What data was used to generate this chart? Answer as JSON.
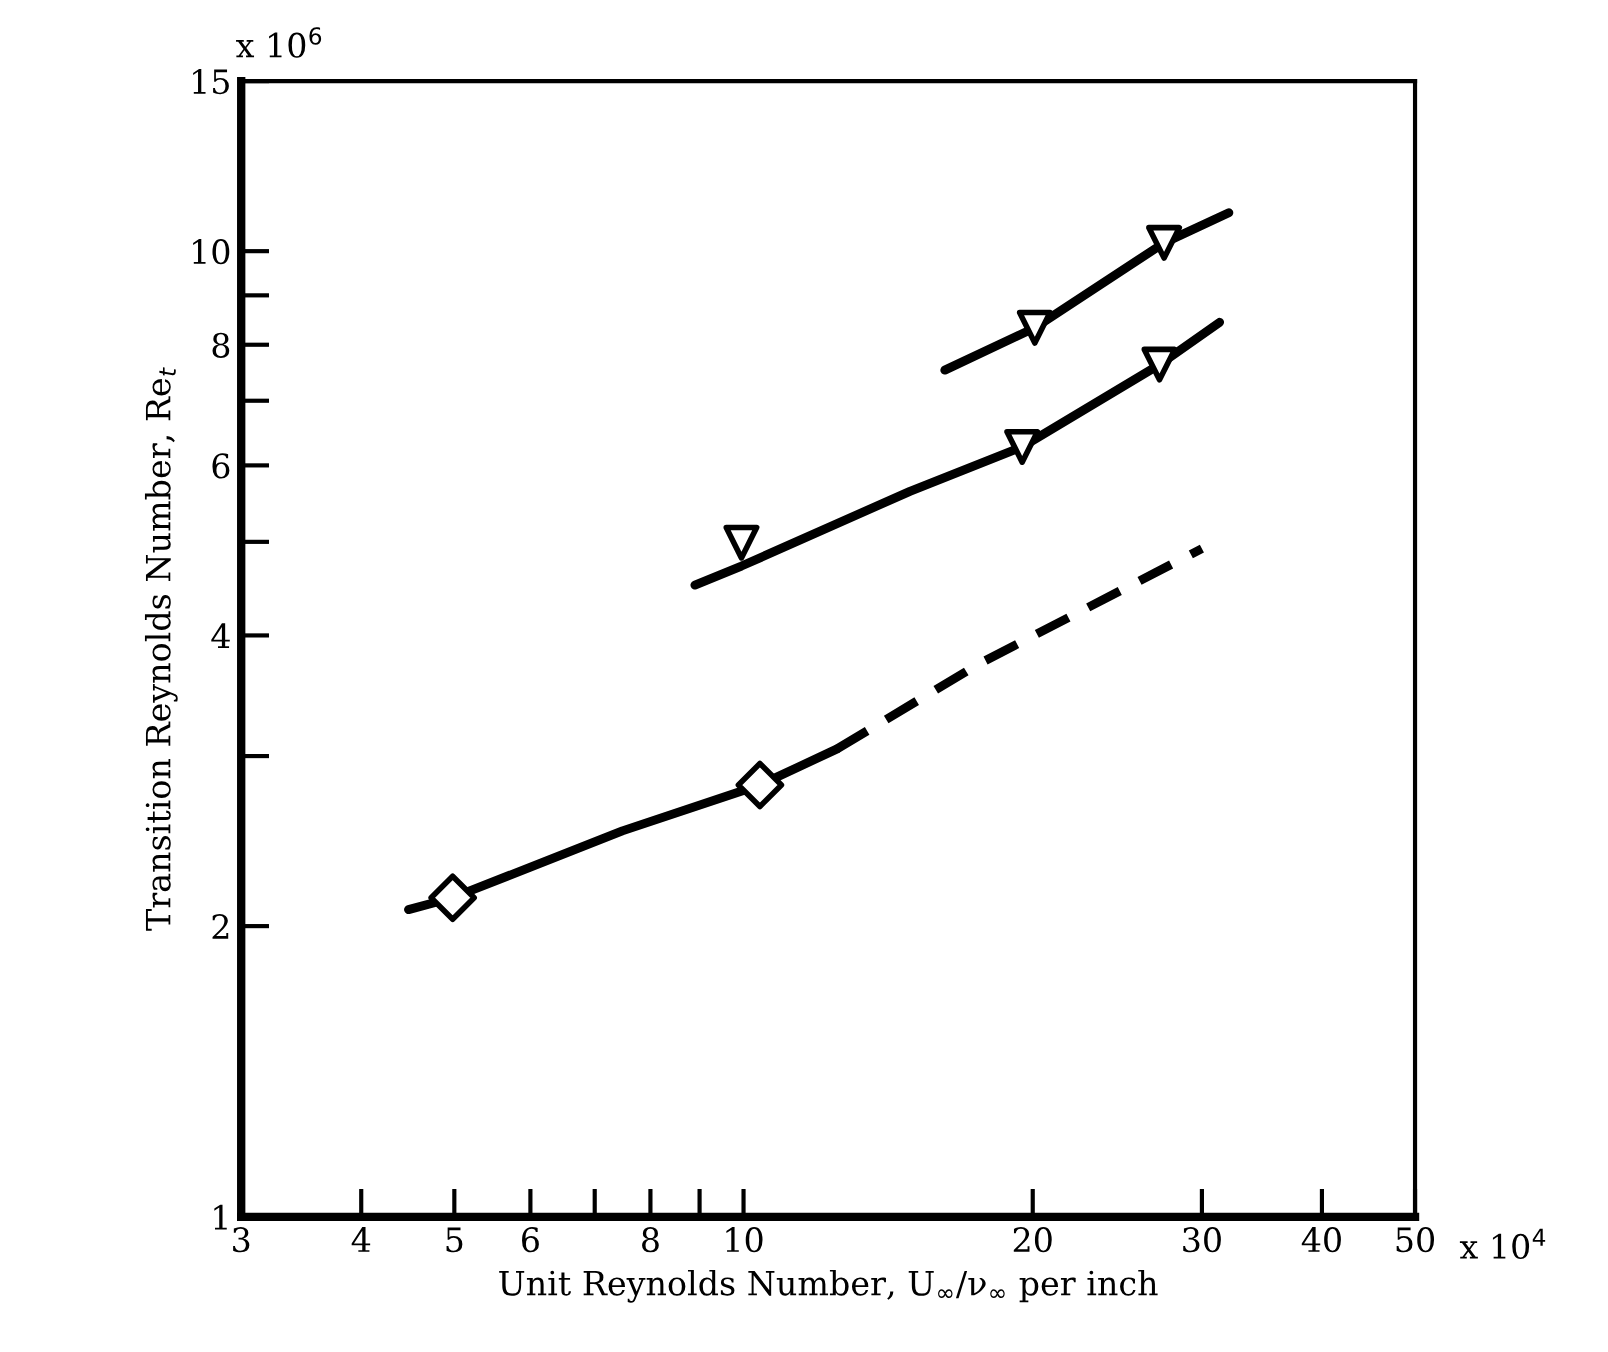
{
  "chart_data": {
    "type": "line",
    "xlabel": "Unit Reynolds Number, U$_{∞}$/ν$_{∞}$ per inch",
    "ylabel": "Transition Reynolds Number, Re$_{t}$",
    "log": "xy",
    "grid": false,
    "legend": false,
    "xlim": [
      3,
      50
    ],
    "ylim": [
      1,
      15
    ],
    "xticks": [
      3,
      4,
      5,
      6,
      {
        "value": 7,
        "label": null
      },
      8,
      {
        "value": 9,
        "label": null
      },
      10,
      20,
      30,
      40,
      50
    ],
    "annotations": [
      "x 10$^{4}$",
      "x 10$^{6}$"
    ],
    "yticks": [
      1,
      2,
      {
        "value": 3,
        "label": null
      },
      4,
      {
        "value": 5,
        "label": null
      },
      6,
      {
        "value": 7,
        "label": null
      },
      8,
      {
        "value": 9,
        "label": null
      },
      10,
      15
    ],
    "series": [
      {
        "color": "#000000",
        "line_style": "solid",
        "marker": "none",
        "x": [
          4.48,
          4.98,
          7.48,
          10.4,
          12.5
        ],
        "values": [
          2.08,
          2.14,
          2.51,
          2.8,
          3.05
        ]
      },
      {
        "color": "#000000",
        "line_style": "dashed",
        "marker": "none",
        "x": [
          12.5,
          17.6,
          30.0
        ],
        "values": [
          3.05,
          3.74,
          4.92
        ]
      },
      {
        "type": "scatter",
        "color": "#000000",
        "marker": "diamond",
        "x": [
          4.98,
          10.4
        ],
        "values": [
          2.14,
          2.8
        ]
      },
      {
        "color": "#000000",
        "line_style": "solid",
        "marker": "none",
        "x": [
          8.9,
          9.95,
          14.9,
          19.5,
          27.1,
          31.3
        ],
        "values": [
          4.51,
          4.72,
          5.64,
          6.27,
          7.63,
          8.44
        ]
      },
      {
        "type": "scatter",
        "color": "#000000",
        "marker": "triangle",
        "x": [
          9.95,
          19.5,
          27.1
        ],
        "values": [
          4.99,
          6.27,
          7.63
        ]
      },
      {
        "color": "#000000",
        "line_style": "solid",
        "marker": "none",
        "x": [
          16.2,
          20.1,
          27.4,
          32.0
        ],
        "values": [
          7.53,
          8.33,
          10.2,
          10.96
        ]
      },
      {
        "type": "scatter",
        "color": "#000000",
        "marker": "triangle",
        "x": [
          20.1,
          27.4
        ],
        "values": [
          8.33,
          10.2
        ]
      }
    ]
  }
}
